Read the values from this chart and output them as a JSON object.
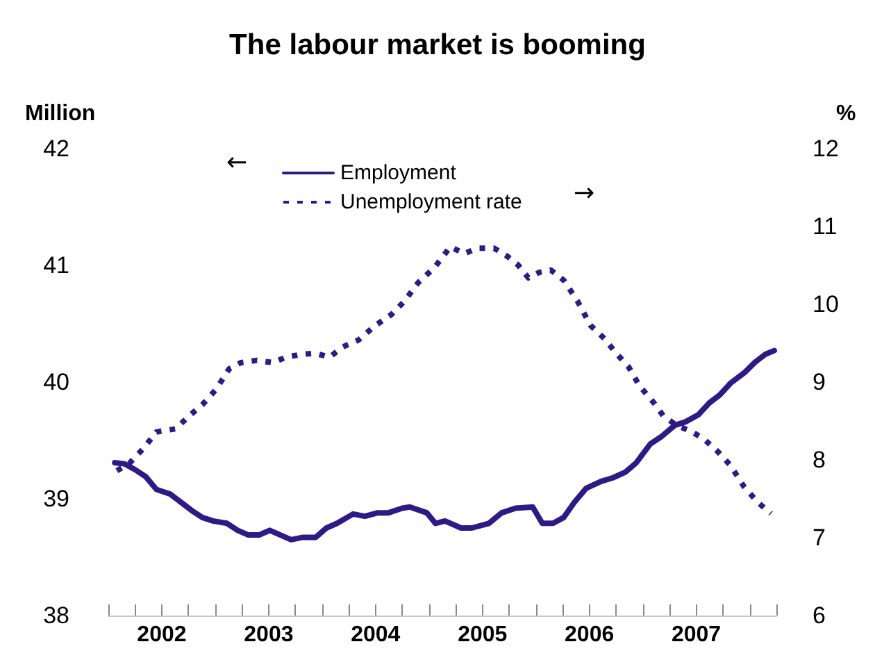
{
  "chart_data": {
    "type": "line",
    "title": "The labour market is booming",
    "ylabel": "Million",
    "y2label": "%",
    "xlim": [
      2002,
      2008.25
    ],
    "xticks": [
      {
        "value": 2002,
        "label": null
      },
      {
        "value": 2002.25,
        "label": null
      },
      {
        "value": 2002.5,
        "label": "2002"
      },
      {
        "value": 2002.75,
        "label": null
      },
      {
        "value": 2003,
        "label": null
      },
      {
        "value": 2003.25,
        "label": null
      },
      {
        "value": 2003.5,
        "label": "2003"
      },
      {
        "value": 2003.75,
        "label": null
      },
      {
        "value": 2004,
        "label": null
      },
      {
        "value": 2004.25,
        "label": null
      },
      {
        "value": 2004.5,
        "label": "2004"
      },
      {
        "value": 2004.75,
        "label": null
      },
      {
        "value": 2005,
        "label": null
      },
      {
        "value": 2005.25,
        "label": null
      },
      {
        "value": 2005.5,
        "label": "2005"
      },
      {
        "value": 2005.75,
        "label": null
      },
      {
        "value": 2006,
        "label": null
      },
      {
        "value": 2006.25,
        "label": null
      },
      {
        "value": 2006.5,
        "label": "2006"
      },
      {
        "value": 2006.75,
        "label": null
      },
      {
        "value": 2007,
        "label": null
      },
      {
        "value": 2007.25,
        "label": null
      },
      {
        "value": 2007.5,
        "label": "2007"
      },
      {
        "value": 2007.75,
        "label": null
      },
      {
        "value": 2008,
        "label": null
      },
      {
        "value": 2008.25,
        "label": null
      }
    ],
    "ylim": [
      38,
      42
    ],
    "yticks": [
      38,
      39,
      40,
      41,
      42
    ],
    "y2lim": [
      6,
      12
    ],
    "y2ticks": [
      6,
      7,
      8,
      9,
      10,
      11,
      12
    ],
    "grid": false,
    "legend": "top",
    "annotations": [
      "←",
      "→"
    ],
    "series": [
      {
        "name": "Employment",
        "color": "#2e1a87",
        "line_style": "solid",
        "x": [
          2002.06,
          2002.15,
          2002.25,
          2002.35,
          2002.45,
          2002.58,
          2002.68,
          2002.78,
          2002.88,
          2002.98,
          2003.11,
          2003.21,
          2003.31,
          2003.41,
          2003.51,
          2003.61,
          2003.71,
          2003.82,
          2003.94,
          2004.04,
          2004.14,
          2004.29,
          2004.4,
          2004.52,
          2004.62,
          2004.75,
          2004.82,
          2004.98,
          2005.06,
          2005.15,
          2005.3,
          2005.4,
          2005.56,
          2005.68,
          2005.81,
          2005.97,
          2006.06,
          2006.16,
          2006.26,
          2006.36,
          2006.47,
          2006.61,
          2006.72,
          2006.84,
          2006.94,
          2007.07,
          2007.17,
          2007.3,
          2007.4,
          2007.52,
          2007.62,
          2007.72,
          2007.82,
          2007.95,
          2008.05,
          2008.15,
          2008.23
        ],
        "values": [
          39.31,
          39.3,
          39.25,
          39.19,
          39.08,
          39.04,
          38.97,
          38.9,
          38.84,
          38.81,
          38.79,
          38.73,
          38.69,
          38.69,
          38.73,
          38.69,
          38.65,
          38.67,
          38.67,
          38.75,
          38.79,
          38.87,
          38.85,
          38.88,
          38.88,
          38.92,
          38.93,
          38.88,
          38.79,
          38.81,
          38.75,
          38.75,
          38.79,
          38.88,
          38.92,
          38.93,
          38.79,
          38.79,
          38.84,
          38.97,
          39.09,
          39.15,
          39.18,
          39.23,
          39.31,
          39.47,
          39.53,
          39.63,
          39.66,
          39.72,
          39.82,
          39.89,
          39.99,
          40.08,
          40.17,
          40.24,
          40.27
        ]
      },
      {
        "name": "Unemployment rate",
        "color": "#2e1a87",
        "line_style": "dotted",
        "axis": "y2",
        "x": [
          2002.08,
          2002.2,
          2002.33,
          2002.45,
          2002.63,
          2002.76,
          2002.88,
          2003.01,
          2003.13,
          2003.24,
          2003.39,
          2003.54,
          2003.66,
          2003.82,
          2003.94,
          2004.07,
          2004.19,
          2004.34,
          2004.5,
          2004.65,
          2004.77,
          2004.9,
          2005.05,
          2005.2,
          2005.33,
          2005.45,
          2005.61,
          2005.73,
          2005.83,
          2005.93,
          2006.03,
          2006.14,
          2006.26,
          2006.39,
          2006.51,
          2006.64,
          2006.74,
          2006.87,
          2006.97,
          2007.1,
          2007.19,
          2007.32,
          2007.45,
          2007.57,
          2007.7,
          2007.82,
          2007.95,
          2008.08,
          2008.2
        ],
        "values": [
          7.86,
          7.96,
          8.15,
          8.36,
          8.4,
          8.57,
          8.71,
          8.91,
          9.17,
          9.25,
          9.28,
          9.25,
          9.32,
          9.36,
          9.37,
          9.32,
          9.45,
          9.54,
          9.73,
          9.87,
          10.04,
          10.28,
          10.47,
          10.74,
          10.65,
          10.72,
          10.72,
          10.62,
          10.51,
          10.34,
          10.41,
          10.44,
          10.31,
          10.04,
          9.73,
          9.56,
          9.39,
          9.19,
          8.95,
          8.74,
          8.57,
          8.44,
          8.37,
          8.27,
          8.11,
          7.93,
          7.65,
          7.45,
          7.31
        ]
      }
    ]
  }
}
